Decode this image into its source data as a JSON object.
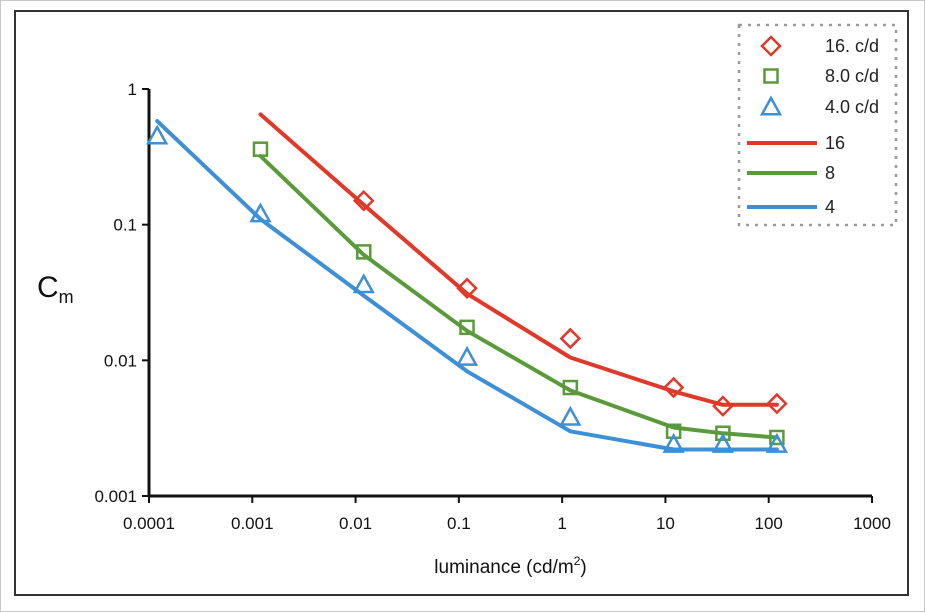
{
  "chart_data": {
    "type": "line",
    "title": "",
    "xlabel": "luminance (cd/m²)",
    "xlabel_main": "luminance (cd/m",
    "xlabel_sup": "2",
    "xlabel_end": ")",
    "ylabel": "Cm",
    "ylabel_main": "C",
    "ylabel_sub": "m",
    "x_scale": "log",
    "y_scale": "log",
    "xlim": [
      0.0001,
      1000
    ],
    "ylim": [
      0.001,
      1
    ],
    "x_ticks": [
      "0.0001",
      "0.001",
      "0.01",
      "0.1",
      "1",
      "10",
      "100",
      "1000"
    ],
    "y_ticks": [
      "0.001",
      "0.01",
      "0.1",
      "1"
    ],
    "grid": false,
    "legend_position": "top-right",
    "series": [
      {
        "name": "16. c/d",
        "kind": "markers",
        "marker": "diamond",
        "color": "#e0392a",
        "x": [
          0.012,
          0.12,
          1.2,
          12,
          36,
          120
        ],
        "y": [
          0.15,
          0.034,
          0.0145,
          0.0063,
          0.0046,
          0.0048
        ]
      },
      {
        "name": "8.0 c/d",
        "kind": "markers",
        "marker": "square",
        "color": "#5a9a3a",
        "x": [
          0.0012,
          0.012,
          0.12,
          1.2,
          12,
          36,
          120
        ],
        "y": [
          0.36,
          0.063,
          0.0175,
          0.0063,
          0.003,
          0.0029,
          0.0027
        ]
      },
      {
        "name": "4.0 c/d",
        "kind": "markers",
        "marker": "triangle",
        "color": "#3d8fd6",
        "x": [
          0.00012,
          0.0012,
          0.012,
          0.12,
          1.2,
          12,
          36,
          120
        ],
        "y": [
          0.45,
          0.12,
          0.036,
          0.0105,
          0.0038,
          0.0024,
          0.0024,
          0.0024
        ]
      },
      {
        "name": "16",
        "kind": "line",
        "color": "#e0392a",
        "x": [
          0.0012,
          0.012,
          0.12,
          1.2,
          12,
          36,
          120
        ],
        "y": [
          0.65,
          0.14,
          0.031,
          0.0105,
          0.0059,
          0.0047,
          0.0047
        ]
      },
      {
        "name": "8",
        "kind": "line",
        "color": "#5a9a3a",
        "x": [
          0.0012,
          0.012,
          0.12,
          1.2,
          12,
          36,
          120
        ],
        "y": [
          0.32,
          0.06,
          0.0165,
          0.006,
          0.0032,
          0.0029,
          0.0027
        ]
      },
      {
        "name": "4",
        "kind": "line",
        "color": "#3d8fd6",
        "x": [
          0.00012,
          0.0012,
          0.012,
          0.12,
          1.2,
          12,
          36,
          120
        ],
        "y": [
          0.58,
          0.11,
          0.03,
          0.0083,
          0.003,
          0.0022,
          0.0022,
          0.0022
        ]
      }
    ]
  }
}
